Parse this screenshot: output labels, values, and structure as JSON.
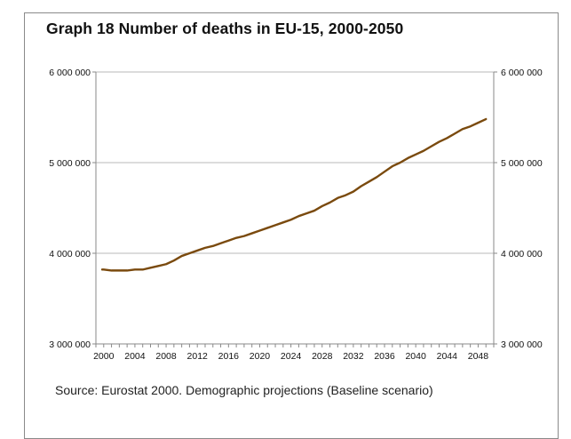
{
  "title": "Graph 18  Number of deaths in EU-15, 2000-2050",
  "source": "Source: Eurostat 2000. Demographic projections (Baseline scenario)",
  "colors": {
    "line": "#7a4a0e",
    "grid": "#b8b8b8",
    "axis": "#8a8a8a"
  },
  "chart_data": {
    "type": "line",
    "title": "Graph 18  Number of deaths in EU-15, 2000-2050",
    "xlabel": "",
    "ylabel": "",
    "ylim": [
      3000000,
      6000000
    ],
    "xlim": [
      1999,
      2050
    ],
    "grid": "horizontal",
    "secondary_y_axis": "right, same scale",
    "x_ticks": [
      2000,
      2004,
      2008,
      2012,
      2016,
      2020,
      2024,
      2028,
      2032,
      2036,
      2040,
      2044,
      2048
    ],
    "y_ticks": [
      3000000,
      4000000,
      5000000,
      6000000
    ],
    "y_tick_labels": [
      "3 000 000",
      "4 000 000",
      "5 000 000",
      "6 000 000"
    ],
    "series": [
      {
        "x": [
          1999.8,
          2000,
          2001,
          2002,
          2003,
          2004,
          2005,
          2006,
          2007,
          2008,
          2009,
          2010,
          2011,
          2012,
          2013,
          2014,
          2015,
          2016,
          2017,
          2018,
          2019,
          2020,
          2021,
          2022,
          2023,
          2024,
          2025,
          2026,
          2027,
          2028,
          2029,
          2030,
          2031,
          2032,
          2033,
          2034,
          2035,
          2036,
          2037,
          2038,
          2039,
          2040,
          2041,
          2042,
          2043,
          2044,
          2045,
          2046,
          2047,
          2048,
          2049
        ],
        "values": [
          3820000,
          3820000,
          3810000,
          3810000,
          3810000,
          3820000,
          3820000,
          3840000,
          3860000,
          3880000,
          3920000,
          3970000,
          4000000,
          4030000,
          4060000,
          4080000,
          4110000,
          4140000,
          4170000,
          4190000,
          4220000,
          4250000,
          4280000,
          4310000,
          4340000,
          4370000,
          4410000,
          4440000,
          4470000,
          4520000,
          4560000,
          4610000,
          4640000,
          4680000,
          4740000,
          4790000,
          4840000,
          4900000,
          4960000,
          5000000,
          5050000,
          5090000,
          5130000,
          5180000,
          5230000,
          5270000,
          5320000,
          5370000,
          5400000,
          5440000,
          5480000
        ]
      }
    ]
  }
}
